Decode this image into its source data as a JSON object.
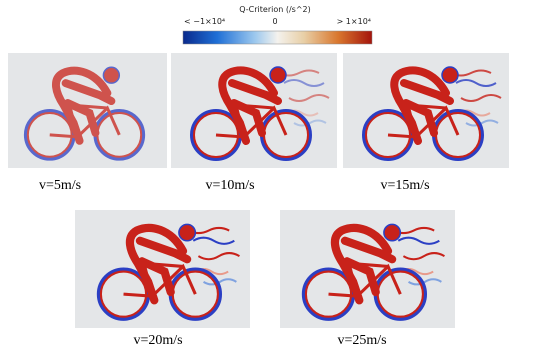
{
  "colorbar": {
    "title": "Q-Criterion (/s^2)",
    "min_label": "< −1×10⁴",
    "mid_label": "0",
    "max_label": "> 1×10⁴"
  },
  "panels": [
    {
      "caption": "v=5m/s"
    },
    {
      "caption": "v=10m/s"
    },
    {
      "caption": "v=15m/s"
    },
    {
      "caption": "v=20m/s"
    },
    {
      "caption": "v=25m/s"
    }
  ]
}
